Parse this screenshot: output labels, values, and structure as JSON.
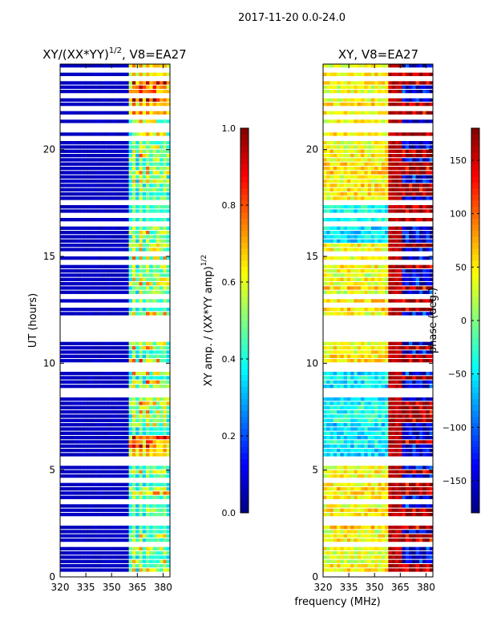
{
  "suptitle": "2017-11-20 0.0-24.0",
  "chart_data": [
    {
      "type": "heatmap",
      "title": "XY/(XX*YY)^1/2, V8=EA27",
      "title_main": "XY/(XX*YY)",
      "title_sup": "1/2",
      "title_rest": ", V8=EA27",
      "xlabel": "",
      "ylabel": "UT (hours)",
      "xlim": [
        320,
        384
      ],
      "ylim": [
        0,
        24
      ],
      "xticks": [
        "320",
        "335",
        "350",
        "365",
        "380"
      ],
      "xtick_values": [
        320,
        335,
        350,
        365,
        380
      ],
      "yticks": [
        "0",
        "5",
        "10",
        "15",
        "20"
      ],
      "ytick_values": [
        0,
        5,
        10,
        15,
        20
      ],
      "colormap": "jet",
      "colorbar": {
        "label": "XY amp. / (XX*YY amp)^1/2",
        "label_main": "XY amp. / (XX*YY amp)",
        "label_sup": "1/2",
        "range": [
          0,
          1
        ],
        "ticks": [
          "0.0",
          "0.2",
          "0.4",
          "0.6",
          "0.8",
          "1.0"
        ],
        "tick_values": [
          0,
          0.2,
          0.4,
          0.6,
          0.8,
          1.0
        ]
      },
      "pattern": {
        "low_band_mhz": [
          320,
          361
        ],
        "low_band_value": 0.05,
        "high_band_value_range": [
          0.3,
          0.9
        ]
      }
    },
    {
      "type": "heatmap",
      "title": "XY, V8=EA27",
      "xlabel": "frequency (MHz)",
      "ylabel": "",
      "xlim": [
        320,
        384
      ],
      "ylim": [
        0,
        24
      ],
      "xticks": [
        "320",
        "335",
        "350",
        "365",
        "380"
      ],
      "xtick_values": [
        320,
        335,
        350,
        365,
        380
      ],
      "yticks": [
        "0",
        "5",
        "10",
        "15",
        "20"
      ],
      "ytick_values": [
        0,
        5,
        10,
        15,
        20
      ],
      "colormap": "jet",
      "colorbar": {
        "label": "phase (deg.)",
        "range": [
          -180,
          180
        ],
        "ticks": [
          "−150",
          "−100",
          "−50",
          "0",
          "50",
          "100",
          "150"
        ],
        "tick_values": [
          -150,
          -100,
          -50,
          0,
          50,
          100,
          150
        ]
      },
      "pattern": {
        "low_band_mhz": [
          320,
          358
        ],
        "low_band_phase_deg": 30,
        "high_band_phase_deg": 160
      }
    }
  ],
  "flag_gaps_hours": [
    [
      0.05,
      0.1
    ],
    [
      1.5,
      1.6
    ],
    [
      2.4,
      2.5
    ],
    [
      5.3,
      5.6
    ],
    [
      8.6,
      8.8
    ],
    [
      9.6,
      9.7
    ],
    [
      10.6,
      10.7
    ],
    [
      15.0,
      15.1
    ],
    [
      20.8,
      21.0
    ],
    [
      21.4,
      21.6
    ],
    [
      22.5,
      22.6
    ]
  ]
}
